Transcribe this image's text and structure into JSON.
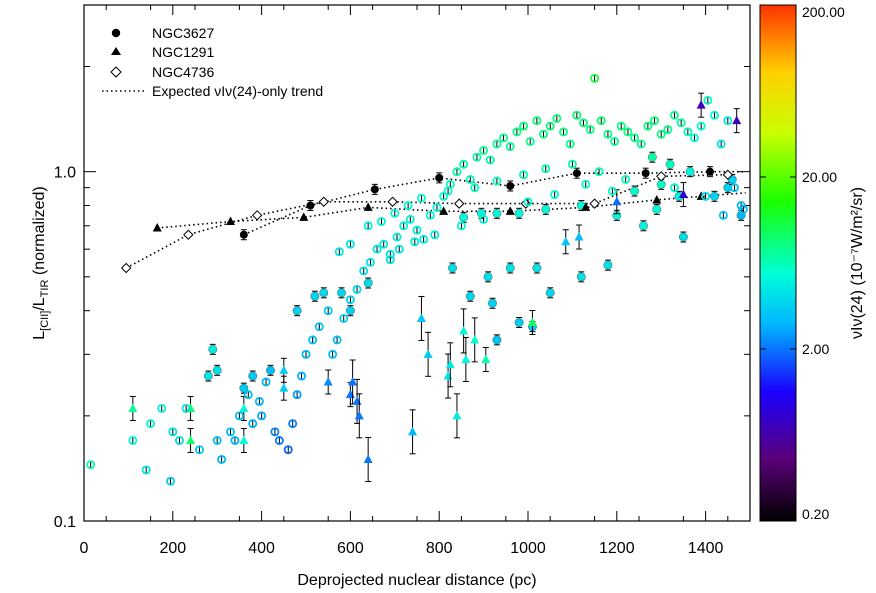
{
  "chart_data": {
    "type": "scatter",
    "xlabel": "Deprojected nuclear distance (pc)",
    "ylabel": "L[CII]/LTIR (normalized)",
    "ylabel_main1": "L",
    "ylabel_sub1": "[CII]",
    "ylabel_main2": "/L",
    "ylabel_sub2": "TIR",
    "ylabel_tail": " (normalized)",
    "xlim": [
      0,
      1500
    ],
    "ylim": [
      0.1,
      3.0
    ],
    "yscale": "log",
    "x_ticks": [
      0,
      200,
      400,
      600,
      800,
      1000,
      1200,
      1400
    ],
    "x_tick_labels": [
      "0",
      "200",
      "400",
      "600",
      "800",
      "1000",
      "1200",
      "1400"
    ],
    "y_ticks": [
      0.1,
      1.0
    ],
    "y_tick_labels": [
      "0.1",
      "1.0"
    ],
    "legend": {
      "position": "top-left",
      "entries": [
        {
          "label": "NGC3627",
          "marker": "filled-circle"
        },
        {
          "label": "NGC1291",
          "marker": "filled-triangle"
        },
        {
          "label": "NGC4736",
          "marker": "open-diamond"
        },
        {
          "label": "Expected νIν(24)-only trend",
          "marker": "dotted-line"
        }
      ]
    },
    "colorbar": {
      "scale": "log",
      "range": [
        0.2,
        200
      ],
      "tick_values": [
        0.2,
        2,
        20,
        200
      ],
      "tick_labels": [
        "0.20",
        "2.00",
        "20.00",
        "200.00"
      ],
      "label": "νIν(24) (10⁻⁷W/m²/sr)",
      "colormap": [
        "#000000",
        "#5a0078",
        "#1b00ff",
        "#00b5ff",
        "#00ffd8",
        "#1bff00",
        "#c8ff00",
        "#ffd000",
        "#ff3300"
      ]
    },
    "series": [
      {
        "name": "NGC3627",
        "marker": "filled-circle",
        "points": [
          {
            "x": 360,
            "y": 0.66
          },
          {
            "x": 510,
            "y": 0.8
          },
          {
            "x": 655,
            "y": 0.89
          },
          {
            "x": 800,
            "y": 0.96
          },
          {
            "x": 960,
            "y": 0.91
          },
          {
            "x": 1110,
            "y": 0.99
          },
          {
            "x": 1265,
            "y": 0.99
          },
          {
            "x": 1410,
            "y": 1.0
          },
          {
            "x": 855,
            "y": 0.74
          },
          {
            "x": 895,
            "y": 0.76
          },
          {
            "x": 930,
            "y": 0.76
          },
          {
            "x": 980,
            "y": 0.76
          },
          {
            "x": 1040,
            "y": 0.78
          },
          {
            "x": 1120,
            "y": 0.8
          },
          {
            "x": 1200,
            "y": 0.75
          },
          {
            "x": 1260,
            "y": 0.7
          },
          {
            "x": 1350,
            "y": 0.65
          },
          {
            "x": 1450,
            "y": 0.9
          },
          {
            "x": 910,
            "y": 0.5
          },
          {
            "x": 960,
            "y": 0.53
          },
          {
            "x": 1020,
            "y": 0.53
          },
          {
            "x": 1120,
            "y": 0.5
          },
          {
            "x": 1180,
            "y": 0.54
          },
          {
            "x": 1050,
            "y": 0.45
          },
          {
            "x": 830,
            "y": 0.53
          },
          {
            "x": 870,
            "y": 0.44
          },
          {
            "x": 920,
            "y": 0.42
          },
          {
            "x": 980,
            "y": 0.37
          },
          {
            "x": 930,
            "y": 0.33
          },
          {
            "x": 1010,
            "y": 0.36
          },
          {
            "x": 1280,
            "y": 1.1
          },
          {
            "x": 1320,
            "y": 1.05
          },
          {
            "x": 1365,
            "y": 1.0
          },
          {
            "x": 1420,
            "y": 0.85
          },
          {
            "x": 1460,
            "y": 0.95
          },
          {
            "x": 1480,
            "y": 0.75
          },
          {
            "x": 1290,
            "y": 0.78
          },
          {
            "x": 1340,
            "y": 0.85
          },
          {
            "x": 1240,
            "y": 0.88
          },
          {
            "x": 1300,
            "y": 0.92
          },
          {
            "x": 280,
            "y": 0.26
          },
          {
            "x": 300,
            "y": 0.27
          },
          {
            "x": 290,
            "y": 0.31
          },
          {
            "x": 360,
            "y": 0.24
          },
          {
            "x": 380,
            "y": 0.26
          },
          {
            "x": 420,
            "y": 0.27
          },
          {
            "x": 540,
            "y": 0.45
          },
          {
            "x": 600,
            "y": 0.4
          },
          {
            "x": 580,
            "y": 0.45
          },
          {
            "x": 640,
            "y": 0.48
          },
          {
            "x": 520,
            "y": 0.44
          },
          {
            "x": 480,
            "y": 0.4
          }
        ]
      },
      {
        "name": "NGC1291",
        "marker": "filled-triangle",
        "points": [
          {
            "x": 165,
            "y": 0.69
          },
          {
            "x": 330,
            "y": 0.72
          },
          {
            "x": 495,
            "y": 0.74
          },
          {
            "x": 640,
            "y": 0.79
          },
          {
            "x": 810,
            "y": 0.77
          },
          {
            "x": 960,
            "y": 0.77
          },
          {
            "x": 1130,
            "y": 0.79
          },
          {
            "x": 1290,
            "y": 0.83
          },
          {
            "x": 1390,
            "y": 0.85
          },
          {
            "x": 110,
            "y": 0.21
          },
          {
            "x": 240,
            "y": 0.21
          },
          {
            "x": 240,
            "y": 0.17
          },
          {
            "x": 360,
            "y": 0.17
          },
          {
            "x": 450,
            "y": 0.24
          },
          {
            "x": 550,
            "y": 0.25
          },
          {
            "x": 600,
            "y": 0.23
          },
          {
            "x": 605,
            "y": 0.25
          },
          {
            "x": 615,
            "y": 0.22
          },
          {
            "x": 620,
            "y": 0.2
          },
          {
            "x": 640,
            "y": 0.15
          },
          {
            "x": 740,
            "y": 0.18
          },
          {
            "x": 775,
            "y": 0.3
          },
          {
            "x": 820,
            "y": 0.26
          },
          {
            "x": 840,
            "y": 0.2
          },
          {
            "x": 855,
            "y": 0.35
          },
          {
            "x": 880,
            "y": 0.33
          },
          {
            "x": 905,
            "y": 0.29
          },
          {
            "x": 1085,
            "y": 0.63
          },
          {
            "x": 1115,
            "y": 0.65
          },
          {
            "x": 1390,
            "y": 1.55
          },
          {
            "x": 1470,
            "y": 1.4
          },
          {
            "x": 760,
            "y": 0.38
          },
          {
            "x": 825,
            "y": 0.28
          },
          {
            "x": 860,
            "y": 0.29
          },
          {
            "x": 1010,
            "y": 0.37
          },
          {
            "x": 1200,
            "y": 0.82
          },
          {
            "x": 1350,
            "y": 0.86
          },
          {
            "x": 450,
            "y": 0.27
          },
          {
            "x": 360,
            "y": 0.21
          }
        ]
      },
      {
        "name": "NGC4736",
        "marker": "open-diamond",
        "points": [
          {
            "x": 95,
            "y": 0.53
          },
          {
            "x": 235,
            "y": 0.66
          },
          {
            "x": 390,
            "y": 0.75
          },
          {
            "x": 540,
            "y": 0.82
          },
          {
            "x": 695,
            "y": 0.82
          },
          {
            "x": 845,
            "y": 0.81
          },
          {
            "x": 995,
            "y": 0.81
          },
          {
            "x": 1150,
            "y": 0.81
          },
          {
            "x": 1300,
            "y": 0.97
          },
          {
            "x": 1450,
            "y": 0.98
          },
          {
            "x": 15,
            "y": 0.145
          },
          {
            "x": 110,
            "y": 0.17
          },
          {
            "x": 140,
            "y": 0.14
          },
          {
            "x": 150,
            "y": 0.19
          },
          {
            "x": 175,
            "y": 0.21
          },
          {
            "x": 195,
            "y": 0.13
          },
          {
            "x": 200,
            "y": 0.18
          },
          {
            "x": 215,
            "y": 0.17
          },
          {
            "x": 230,
            "y": 0.21
          },
          {
            "x": 260,
            "y": 0.16
          },
          {
            "x": 300,
            "y": 0.17
          },
          {
            "x": 310,
            "y": 0.15
          },
          {
            "x": 330,
            "y": 0.18
          },
          {
            "x": 340,
            "y": 0.17
          },
          {
            "x": 350,
            "y": 0.2
          },
          {
            "x": 370,
            "y": 0.23
          },
          {
            "x": 380,
            "y": 0.19
          },
          {
            "x": 395,
            "y": 0.22
          },
          {
            "x": 400,
            "y": 0.2
          },
          {
            "x": 410,
            "y": 0.25
          },
          {
            "x": 430,
            "y": 0.18
          },
          {
            "x": 440,
            "y": 0.17
          },
          {
            "x": 460,
            "y": 0.16
          },
          {
            "x": 470,
            "y": 0.19
          },
          {
            "x": 480,
            "y": 0.23
          },
          {
            "x": 490,
            "y": 0.26
          },
          {
            "x": 500,
            "y": 0.3
          },
          {
            "x": 515,
            "y": 0.33
          },
          {
            "x": 530,
            "y": 0.36
          },
          {
            "x": 550,
            "y": 0.4
          },
          {
            "x": 560,
            "y": 0.3
          },
          {
            "x": 570,
            "y": 0.33
          },
          {
            "x": 585,
            "y": 0.38
          },
          {
            "x": 600,
            "y": 0.43
          },
          {
            "x": 615,
            "y": 0.46
          },
          {
            "x": 630,
            "y": 0.52
          },
          {
            "x": 645,
            "y": 0.55
          },
          {
            "x": 660,
            "y": 0.6
          },
          {
            "x": 675,
            "y": 0.62
          },
          {
            "x": 690,
            "y": 0.58
          },
          {
            "x": 705,
            "y": 0.65
          },
          {
            "x": 720,
            "y": 0.7
          },
          {
            "x": 735,
            "y": 0.73
          },
          {
            "x": 750,
            "y": 0.68
          },
          {
            "x": 765,
            "y": 0.64
          },
          {
            "x": 780,
            "y": 0.75
          },
          {
            "x": 795,
            "y": 0.79
          },
          {
            "x": 810,
            "y": 0.85
          },
          {
            "x": 825,
            "y": 0.92
          },
          {
            "x": 840,
            "y": 1.0
          },
          {
            "x": 855,
            "y": 1.05
          },
          {
            "x": 870,
            "y": 0.95
          },
          {
            "x": 885,
            "y": 1.1
          },
          {
            "x": 900,
            "y": 1.15
          },
          {
            "x": 915,
            "y": 1.08
          },
          {
            "x": 930,
            "y": 1.2
          },
          {
            "x": 945,
            "y": 1.25
          },
          {
            "x": 960,
            "y": 1.18
          },
          {
            "x": 975,
            "y": 1.3
          },
          {
            "x": 990,
            "y": 1.35
          },
          {
            "x": 1005,
            "y": 1.22
          },
          {
            "x": 1020,
            "y": 1.4
          },
          {
            "x": 1035,
            "y": 1.28
          },
          {
            "x": 1050,
            "y": 1.35
          },
          {
            "x": 1065,
            "y": 1.42
          },
          {
            "x": 1080,
            "y": 1.3
          },
          {
            "x": 1095,
            "y": 1.2
          },
          {
            "x": 1110,
            "y": 1.45
          },
          {
            "x": 1125,
            "y": 1.38
          },
          {
            "x": 1140,
            "y": 1.32
          },
          {
            "x": 1150,
            "y": 1.85
          },
          {
            "x": 1165,
            "y": 1.4
          },
          {
            "x": 1180,
            "y": 1.28
          },
          {
            "x": 1195,
            "y": 1.22
          },
          {
            "x": 1210,
            "y": 1.35
          },
          {
            "x": 1225,
            "y": 1.3
          },
          {
            "x": 1240,
            "y": 1.25
          },
          {
            "x": 1255,
            "y": 1.2
          },
          {
            "x": 1270,
            "y": 1.35
          },
          {
            "x": 1285,
            "y": 1.4
          },
          {
            "x": 1300,
            "y": 1.28
          },
          {
            "x": 1315,
            "y": 1.32
          },
          {
            "x": 1330,
            "y": 1.45
          },
          {
            "x": 1345,
            "y": 1.38
          },
          {
            "x": 1360,
            "y": 1.3
          },
          {
            "x": 1375,
            "y": 1.25
          },
          {
            "x": 1390,
            "y": 1.35
          },
          {
            "x": 1405,
            "y": 1.6
          },
          {
            "x": 1420,
            "y": 1.45
          },
          {
            "x": 1435,
            "y": 1.2
          },
          {
            "x": 1450,
            "y": 1.4
          },
          {
            "x": 1465,
            "y": 0.9
          },
          {
            "x": 1480,
            "y": 0.8
          },
          {
            "x": 575,
            "y": 0.59
          },
          {
            "x": 600,
            "y": 0.62
          },
          {
            "x": 640,
            "y": 0.7
          },
          {
            "x": 670,
            "y": 0.72
          },
          {
            "x": 700,
            "y": 0.76
          },
          {
            "x": 730,
            "y": 0.8
          },
          {
            "x": 760,
            "y": 0.84
          },
          {
            "x": 820,
            "y": 0.88
          },
          {
            "x": 880,
            "y": 0.9
          },
          {
            "x": 930,
            "y": 0.94
          },
          {
            "x": 990,
            "y": 0.98
          },
          {
            "x": 1040,
            "y": 1.02
          },
          {
            "x": 1100,
            "y": 1.05
          },
          {
            "x": 1160,
            "y": 1.0
          },
          {
            "x": 1220,
            "y": 0.95
          },
          {
            "x": 1330,
            "y": 0.9
          },
          {
            "x": 1400,
            "y": 0.85
          },
          {
            "x": 1440,
            "y": 0.75
          },
          {
            "x": 1485,
            "y": 0.78
          },
          {
            "x": 690,
            "y": 0.56
          },
          {
            "x": 710,
            "y": 0.6
          },
          {
            "x": 745,
            "y": 0.63
          },
          {
            "x": 790,
            "y": 0.66
          },
          {
            "x": 850,
            "y": 0.7
          },
          {
            "x": 900,
            "y": 0.73
          },
          {
            "x": 1000,
            "y": 0.82
          },
          {
            "x": 1060,
            "y": 0.86
          },
          {
            "x": 1130,
            "y": 0.92
          },
          {
            "x": 1190,
            "y": 0.88
          }
        ]
      }
    ],
    "trend_lines": [
      {
        "name": "NGC3627-trend",
        "x": [
          360,
          510,
          655,
          800,
          960,
          1110,
          1265,
          1410,
          1490
        ],
        "y": [
          0.66,
          0.8,
          0.89,
          0.96,
          0.91,
          0.99,
          0.99,
          1.0,
          1.0
        ]
      },
      {
        "name": "NGC1291-trend",
        "x": [
          165,
          330,
          495,
          640,
          810,
          960,
          1130,
          1290,
          1390,
          1490
        ],
        "y": [
          0.69,
          0.72,
          0.74,
          0.79,
          0.77,
          0.77,
          0.79,
          0.83,
          0.85,
          0.87
        ]
      },
      {
        "name": "NGC4736-trend",
        "x": [
          95,
          235,
          390,
          540,
          695,
          845,
          995,
          1150,
          1300,
          1450
        ],
        "y": [
          0.53,
          0.66,
          0.75,
          0.82,
          0.82,
          0.81,
          0.81,
          0.81,
          0.97,
          0.98
        ]
      }
    ]
  }
}
